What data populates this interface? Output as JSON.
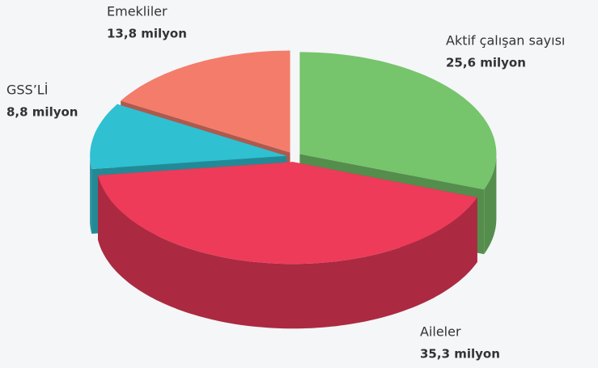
{
  "chart_data": {
    "type": "pie",
    "categories": [
      "Aktif çalışan sayısı",
      "Aileler",
      "GSS’Lİ",
      "Emekliler"
    ],
    "values": [
      25.6,
      35.3,
      8.8,
      13.8
    ],
    "value_labels": [
      "25,6 milyon",
      "35,3 milyon",
      "8,8 milyon",
      "13,8 milyon"
    ],
    "colors": [
      "#76c46b",
      "#ee3b5a",
      "#2fc0d1",
      "#f47c6b"
    ]
  }
}
